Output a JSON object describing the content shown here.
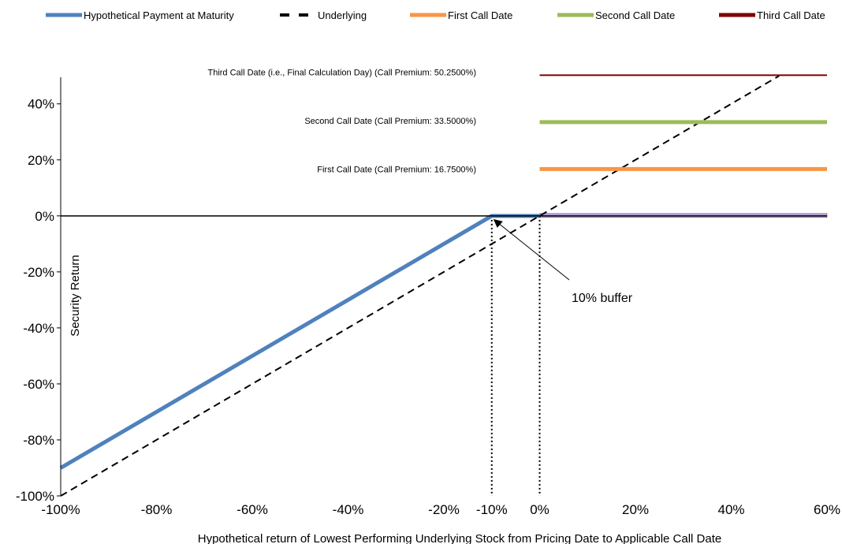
{
  "chart_data": {
    "type": "line",
    "xlabel": "Hypothetical return of Lowest Performing Underlying Stock from Pricing Date to Applicable Call Date",
    "ylabel": "Security Return",
    "xlim": [
      -100,
      60
    ],
    "ylim": [
      -100,
      50
    ],
    "x_ticks": [
      -100,
      -80,
      -60,
      -40,
      -20,
      0,
      20,
      40,
      60
    ],
    "x_tick_labels": [
      "-100%",
      "-80%",
      "-60%",
      "-40%",
      "-20%",
      "0%",
      "20%",
      "40%",
      "60%"
    ],
    "y_ticks": [
      -100,
      -80,
      -60,
      -40,
      -20,
      0,
      20,
      40
    ],
    "y_tick_labels": [
      "-100%",
      "-80%",
      "-60%",
      "-40%",
      "-20%",
      "0%",
      "20%",
      "40%"
    ],
    "extra_x_tick": {
      "value": -10,
      "label": "-10%"
    },
    "grid": false,
    "legend_position": "top",
    "series": [
      {
        "name": "Hypothetical Payment at Maturity",
        "color": "#4f81bd",
        "style": "solid",
        "points": [
          [
            -100,
            -90
          ],
          [
            -10,
            0
          ],
          [
            0,
            0
          ]
        ]
      },
      {
        "name": "Underlying",
        "color": "#000000",
        "style": "dashed",
        "points": [
          [
            -100,
            -100
          ],
          [
            50,
            50
          ]
        ]
      },
      {
        "name": "First Call Date",
        "color": "#f79646",
        "style": "solid",
        "points": [
          [
            0,
            16.75
          ],
          [
            60,
            16.75
          ]
        ]
      },
      {
        "name": "Second Call Date",
        "color": "#9bbb59",
        "style": "solid",
        "points": [
          [
            0,
            33.5
          ],
          [
            60,
            33.5
          ]
        ]
      },
      {
        "name": "Third Call Date",
        "color": "#7f0000",
        "style": "solid",
        "points": [
          [
            0,
            50.25
          ],
          [
            60,
            50.25
          ]
        ]
      }
    ],
    "purple_band": {
      "color": "#b9a0d8",
      "x": [
        0,
        60
      ],
      "y": 0
    },
    "call_annotations": [
      {
        "text": "Third Call Date (i.e., Final Calculation Day) (Call Premium: 50.2500%)",
        "y": 50.25
      },
      {
        "text": "Second Call Date (Call Premium: 33.5000%)",
        "y": 33.5
      },
      {
        "text": "First Call Date (Call Premium: 16.7500%)",
        "y": 16.75
      }
    ],
    "buffer_annotation": {
      "text": "10% buffer",
      "points_to": [
        -10,
        0
      ]
    },
    "vertical_markers": [
      -10,
      0
    ]
  }
}
